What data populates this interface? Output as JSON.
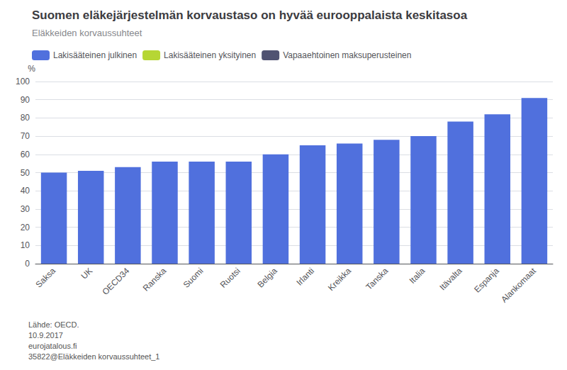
{
  "chart_data": {
    "type": "bar",
    "title": "Suomen eläkejärjestelmän korvaustaso on hyvää eurooppalaista keskitasoa",
    "subtitle": "Eläkkeiden korvaussuhteet",
    "ylabel": "%",
    "categories": [
      "Saksa",
      "UK",
      "OECD34",
      "Ranska",
      "Suomi",
      "Ruotsi",
      "Belgia",
      "Irlanti",
      "Kreikka",
      "Tanska",
      "Italia",
      "Itävalta",
      "Espanja",
      "Alankomaat"
    ],
    "series": [
      {
        "name": "Lakisääteinen julkinen",
        "values": [
          50,
          51,
          53,
          56,
          56,
          56,
          60,
          65,
          66,
          68,
          70,
          78,
          82,
          91
        ]
      },
      {
        "name": "Lakisääteinen yksityinen",
        "values": [
          null,
          null,
          null,
          null,
          null,
          null,
          null,
          null,
          null,
          null,
          null,
          null,
          null,
          null
        ]
      },
      {
        "name": "Vapaaehtoinen maksuperusteinen",
        "values": [
          null,
          null,
          null,
          null,
          null,
          null,
          null,
          null,
          null,
          null,
          null,
          null,
          null,
          null
        ]
      }
    ],
    "stacked": true,
    "ylim": [
      0,
      100
    ],
    "yticks": [
      0,
      10,
      20,
      30,
      40,
      50,
      60,
      70,
      80,
      90,
      100
    ],
    "grid": true,
    "legend": "top-left",
    "annotations": [
      "Lähde: OECD.\n10.9.2017\neurojatalous.fi\n35822@Eläkkeiden korvaussuhteet_1"
    ]
  }
}
